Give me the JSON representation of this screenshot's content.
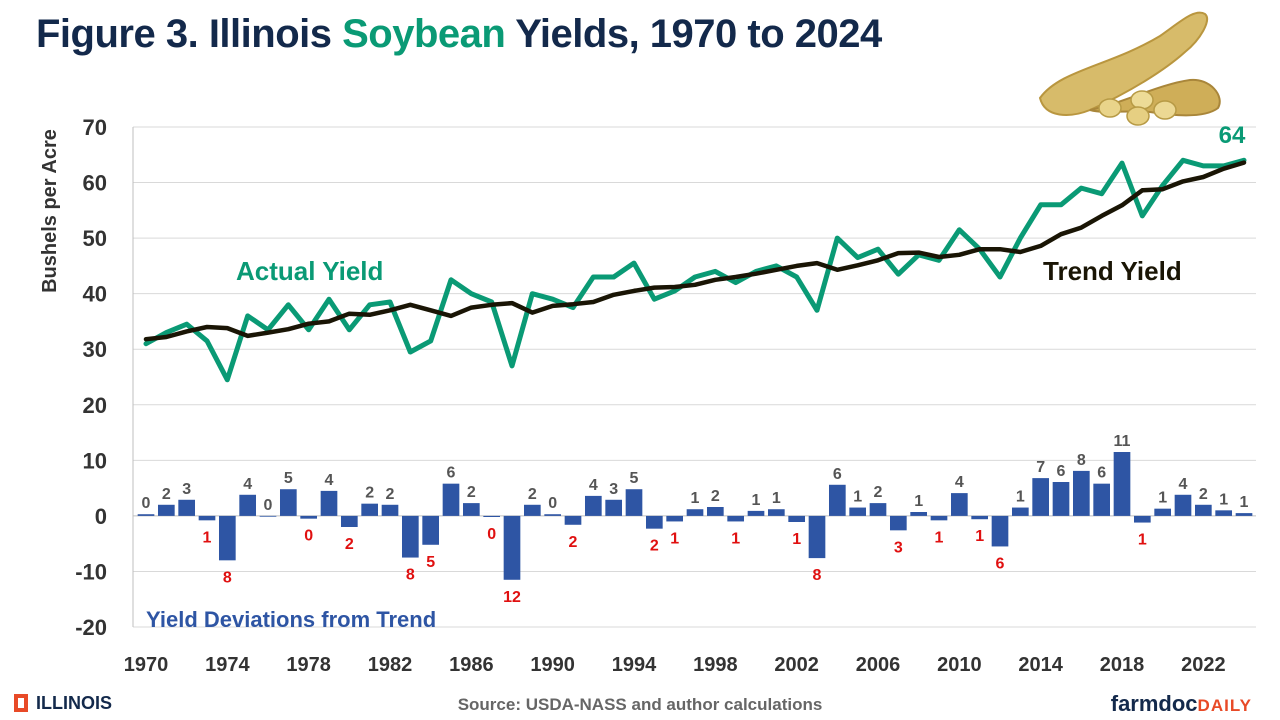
{
  "title": {
    "prefix": "Figure 3. Illinois ",
    "highlight": "Soybean",
    "suffix": " Yields, 1970 to 2024"
  },
  "footer": {
    "left": "ILLINOIS",
    "source": "Source: USDA-NASS and author calculations",
    "right_a": "farmdoc",
    "right_b": "DAILY"
  },
  "colors": {
    "actual": "#0a9a75",
    "trend": "#1a1505",
    "bars": "#2e55a4",
    "neg_label": "#e01010",
    "pos_label": "#555555",
    "title_navy": "#13294b"
  },
  "chart_data": {
    "type": "line",
    "ylabel": "Bushels per Acre",
    "ylim": [
      -20,
      70
    ],
    "yticks": [
      -20,
      -10,
      0,
      10,
      20,
      30,
      40,
      50,
      60,
      70
    ],
    "xlim": [
      1970,
      2024
    ],
    "xtick_labels": [
      "1970",
      "1974",
      "1978",
      "1982",
      "1986",
      "1990",
      "1994",
      "1998",
      "2002",
      "2006",
      "2010",
      "2014",
      "2018",
      "2022"
    ],
    "grid": true,
    "annotations": {
      "actual_label": "Actual Yield",
      "trend_label": "Trend Yield",
      "deviation_label": "Yield Deviations from Trend",
      "final_value_label": "64"
    },
    "years": [
      1970,
      1971,
      1972,
      1973,
      1974,
      1975,
      1976,
      1977,
      1978,
      1979,
      1980,
      1981,
      1982,
      1983,
      1984,
      1985,
      1986,
      1987,
      1988,
      1989,
      1990,
      1991,
      1992,
      1993,
      1994,
      1995,
      1996,
      1997,
      1998,
      1999,
      2000,
      2001,
      2002,
      2003,
      2004,
      2005,
      2006,
      2007,
      2008,
      2009,
      2010,
      2011,
      2012,
      2013,
      2014,
      2015,
      2016,
      2017,
      2018,
      2019,
      2020,
      2021,
      2022,
      2023,
      2024
    ],
    "series": [
      {
        "name": "Actual Yield",
        "values": [
          31,
          33,
          34.5,
          31.5,
          24.5,
          36,
          33.5,
          38,
          33.5,
          39,
          33.5,
          38,
          38.5,
          29.5,
          31.5,
          42.5,
          40,
          38.5,
          27,
          40,
          39,
          37.5,
          43,
          43,
          45.5,
          39,
          40.5,
          43,
          44,
          42,
          44,
          45,
          43,
          37,
          50,
          46.5,
          48,
          43.5,
          47,
          46,
          51.5,
          48,
          43,
          50,
          56,
          56,
          59,
          58,
          63.5,
          54,
          59.5,
          64,
          63,
          63,
          64
        ]
      },
      {
        "name": "Trend Yield",
        "values": [
          31.8,
          32.2,
          33.2,
          34,
          33.8,
          32.4,
          33,
          33.6,
          34.6,
          35,
          36.4,
          36.2,
          37,
          38,
          37,
          36,
          37.5,
          38,
          38.3,
          36.6,
          37.8,
          38.1,
          38.5,
          39.8,
          40.5,
          41.1,
          41.2,
          41.6,
          42.5,
          43,
          43.6,
          44.3,
          45,
          45.5,
          44.3,
          45.1,
          46,
          47.3,
          47.4,
          46.6,
          47,
          48,
          48,
          47.5,
          48.6,
          50.7,
          51.9,
          54,
          55.9,
          58.6,
          58.8,
          60.2,
          61,
          62.5,
          63.6
        ]
      },
      {
        "name": "Yield Deviations from Trend",
        "values": [
          0.3,
          2,
          2.9,
          -0.8,
          -8,
          3.8,
          0,
          4.8,
          -0.5,
          4.5,
          -2,
          2.2,
          2,
          -7.5,
          -5.2,
          5.8,
          2.3,
          -0.2,
          -11.5,
          2,
          0.3,
          -1.6,
          3.6,
          2.9,
          4.8,
          -2.3,
          -1,
          1.2,
          1.6,
          -1,
          0.9,
          1.2,
          -1.1,
          -7.6,
          5.6,
          1.5,
          2.3,
          -2.6,
          0.7,
          -0.8,
          4.1,
          -0.6,
          -5.5,
          1.5,
          6.8,
          6.1,
          8.1,
          5.8,
          11.5,
          -1.2,
          1.3,
          3.8,
          2,
          1,
          0.5
        ]
      }
    ],
    "deviation_labels": [
      "0",
      "2",
      "3",
      "1",
      "8",
      "4",
      "0",
      "5",
      "0",
      "4",
      "2",
      "2",
      "2",
      "8",
      "5",
      "6",
      "2",
      "0",
      "12",
      "2",
      "0",
      "2",
      "4",
      "3",
      "5",
      "2",
      "1",
      "1",
      "2",
      "1",
      "1",
      "1",
      "1",
      "8",
      "6",
      "1",
      "2",
      "3",
      "1",
      "1",
      "4",
      "1",
      "6",
      "1",
      "7",
      "6",
      "8",
      "6",
      "11",
      "1",
      "1",
      "4",
      "2",
      "1",
      "1"
    ]
  }
}
